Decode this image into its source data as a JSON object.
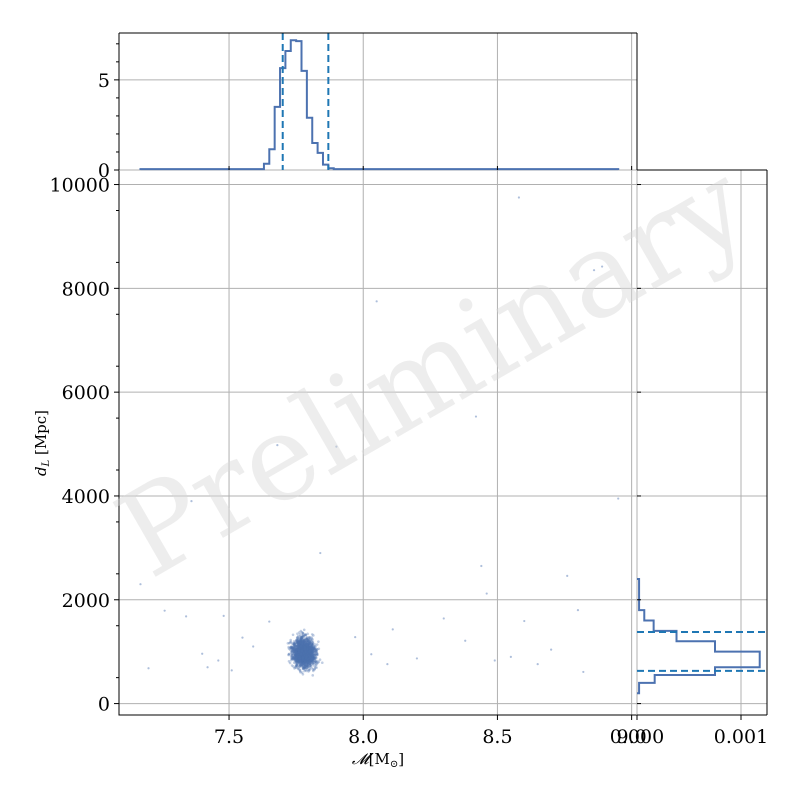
{
  "watermark": "Preliminary",
  "chart_data": [
    {
      "id": "scatter",
      "type": "scatter",
      "xlabel": "𝓜[M⊙]",
      "ylabel": "d_L [Mpc]",
      "xlim": [
        7.09,
        9.02
      ],
      "ylim": [
        -220,
        10280
      ],
      "xticks": [
        7.5,
        8.0,
        8.5,
        9.0
      ],
      "xtick_labels": [
        "7.5",
        "8.0",
        "8.5",
        "9.0"
      ],
      "yticks": [
        0,
        2000,
        4000,
        6000,
        8000,
        10000
      ],
      "ytick_labels": [
        "0",
        "2000",
        "4000",
        "6000",
        "8000",
        "10000"
      ],
      "grid": true,
      "color": "#4c72b0",
      "cluster": {
        "x_center": 7.78,
        "x_sd": 0.042,
        "y_center": 980,
        "y_sd": 270
      },
      "outliers": [
        {
          "x": 7.17,
          "y": 2300
        },
        {
          "x": 7.2,
          "y": 680
        },
        {
          "x": 7.26,
          "y": 1790
        },
        {
          "x": 7.34,
          "y": 1680
        },
        {
          "x": 7.36,
          "y": 3900
        },
        {
          "x": 7.4,
          "y": 960
        },
        {
          "x": 7.42,
          "y": 700
        },
        {
          "x": 7.46,
          "y": 830
        },
        {
          "x": 7.48,
          "y": 1690
        },
        {
          "x": 7.51,
          "y": 640
        },
        {
          "x": 7.55,
          "y": 1270
        },
        {
          "x": 7.59,
          "y": 1100
        },
        {
          "x": 7.65,
          "y": 1580
        },
        {
          "x": 7.68,
          "y": 4980
        },
        {
          "x": 7.84,
          "y": 2900
        },
        {
          "x": 7.9,
          "y": 4950
        },
        {
          "x": 7.97,
          "y": 1280
        },
        {
          "x": 8.03,
          "y": 950
        },
        {
          "x": 8.05,
          "y": 7750
        },
        {
          "x": 8.09,
          "y": 760
        },
        {
          "x": 8.11,
          "y": 1430
        },
        {
          "x": 8.2,
          "y": 870
        },
        {
          "x": 8.3,
          "y": 1640
        },
        {
          "x": 8.38,
          "y": 1210
        },
        {
          "x": 8.42,
          "y": 5530
        },
        {
          "x": 8.44,
          "y": 2650
        },
        {
          "x": 8.46,
          "y": 2120
        },
        {
          "x": 8.49,
          "y": 830
        },
        {
          "x": 8.55,
          "y": 900
        },
        {
          "x": 8.58,
          "y": 9750
        },
        {
          "x": 8.6,
          "y": 1590
        },
        {
          "x": 8.65,
          "y": 760
        },
        {
          "x": 8.7,
          "y": 1040
        },
        {
          "x": 8.76,
          "y": 2460
        },
        {
          "x": 8.8,
          "y": 1800
        },
        {
          "x": 8.82,
          "y": 610
        },
        {
          "x": 8.86,
          "y": 8350
        },
        {
          "x": 8.89,
          "y": 8420
        },
        {
          "x": 8.95,
          "y": 3950
        }
      ]
    },
    {
      "id": "top-histogram",
      "type": "histogram",
      "orientation": "vertical",
      "ylim": [
        0,
        7.6
      ],
      "yticks": [
        0,
        5
      ],
      "ytick_labels": [
        "0",
        "5"
      ],
      "bin_edges": [
        7.17,
        7.63,
        7.65,
        7.67,
        7.69,
        7.71,
        7.73,
        7.75,
        7.77,
        7.79,
        7.81,
        7.83,
        7.85,
        7.87,
        7.89,
        7.91,
        8.95
      ],
      "densities": [
        0.05,
        0.35,
        1.15,
        3.5,
        5.65,
        6.6,
        7.2,
        7.15,
        5.5,
        2.9,
        1.5,
        0.95,
        0.3,
        0.1,
        0.05,
        0.05
      ],
      "quantile_lines": [
        7.7,
        7.87
      ],
      "color": "#4c72b0",
      "line_color": "#1f77b4",
      "grid": true
    },
    {
      "id": "right-histogram",
      "type": "histogram",
      "orientation": "horizontal",
      "xlim": [
        0,
        0.00125
      ],
      "xticks": [
        0,
        0.001
      ],
      "xtick_labels": [
        "0.000",
        "0.001"
      ],
      "bin_edges": [
        200,
        400,
        550,
        700,
        1000,
        1200,
        1400,
        1600,
        1800,
        2400
      ],
      "densities": [
        2e-05,
        0.00017,
        0.00075,
        0.00118,
        0.00075,
        0.00038,
        0.00016,
        7e-05,
        2e-05
      ],
      "quantile_lines": [
        630,
        1380
      ],
      "color": "#4c72b0",
      "line_color": "#1f77b4",
      "grid": true
    }
  ]
}
